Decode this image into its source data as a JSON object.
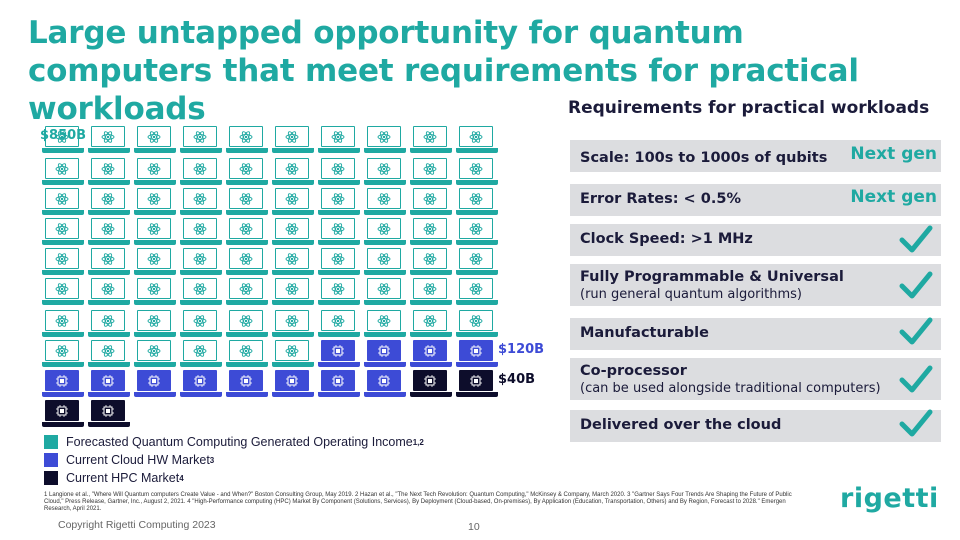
{
  "slide": {
    "title": "Large untapped opportunity for quantum computers that meet requirements for practical workloads",
    "requirements_heading": "Requirements for practical workloads",
    "copyright": "Copyright Rigetti Computing 2023",
    "page_number": "10",
    "logo_text": "rigetti",
    "footnote": "1 Langione et al., \"Where Will Quantum computers Create Value - and When?\" Boston Consulting Group, May 2019. 2 Hazan et al., \"The Next Tech Revolution: Quantum Computing,\" McKinsey & Company, March 2020. 3 \"Gartner Says Four Trends Are Shaping the Future of Public Cloud,\" Press Release, Gartner, Inc., August 2, 2021. 4 \"High-Performance computing (HPC) Market By Component (Solutions, Services), By Deployment (Cloud-based, On-premises), By Application (Education, Transportation, Others) and By Region, Forecast to 2028.\" Emergen Research, April 2021."
  },
  "market": {
    "label_total": "$850B",
    "label_cloud": "$120B",
    "label_hpc": "$40B",
    "legend": [
      {
        "label": "Forecasted Quantum Computing Generated Operating Income",
        "sup": "1,2",
        "color": "#1fa9a2"
      },
      {
        "label": "Current Cloud HW Market",
        "sup": "3",
        "color": "#3d4bd6"
      },
      {
        "label": "Current HPC Market",
        "sup": "4",
        "color": "#0d0d2b"
      }
    ]
  },
  "requirements": [
    {
      "label": "Scale: 100s to 1000s of qubits",
      "sub": "",
      "status": "Next gen"
    },
    {
      "label": "Error Rates: < 0.5%",
      "sub": "",
      "status": "Next gen"
    },
    {
      "label": "Clock Speed: >1 MHz",
      "sub": "",
      "status": "check"
    },
    {
      "label": "Fully Programmable & Universal",
      "sub": "(run general quantum algorithms)",
      "status": "check"
    },
    {
      "label": "Manufacturable",
      "sub": "",
      "status": "check"
    },
    {
      "label": "Co-processor",
      "sub": "(can be used alongside traditional computers)",
      "status": "check"
    },
    {
      "label": "Delivered over the cloud",
      "sub": "",
      "status": "check"
    }
  ]
}
